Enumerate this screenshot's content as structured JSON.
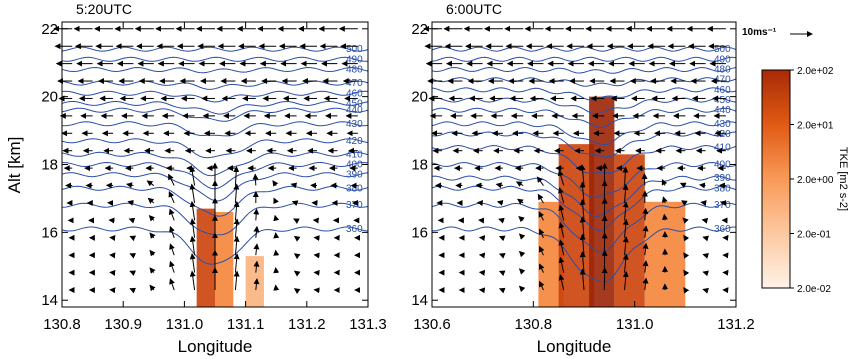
{
  "chart_data": [
    {
      "type": "contour",
      "title": "5:20UTC",
      "xlabel": "Longitude",
      "ylabel": "Alt [km]",
      "xlim": [
        130.8,
        131.3
      ],
      "ylim": [
        13.8,
        22.2
      ],
      "xticks": [
        "130.8",
        "130.9",
        "131.0",
        "131.1",
        "131.2",
        "131.3"
      ],
      "yticks": [
        "14",
        "16",
        "18",
        "20",
        "22"
      ],
      "theta_contours": [
        {
          "label": "360",
          "alt": 16.1
        },
        {
          "label": "370",
          "alt": 16.8
        },
        {
          "label": "380",
          "alt": 17.3
        },
        {
          "label": "390",
          "alt": 17.7
        },
        {
          "label": "400",
          "alt": 18.0
        },
        {
          "label": "410",
          "alt": 18.3
        },
        {
          "label": "420",
          "alt": 18.7
        },
        {
          "label": "430",
          "alt": 19.2
        },
        {
          "label": "440",
          "alt": 19.6
        },
        {
          "label": "450",
          "alt": 19.8
        },
        {
          "label": "460",
          "alt": 20.1
        },
        {
          "label": "470",
          "alt": 20.4
        },
        {
          "label": "480",
          "alt": 20.8
        },
        {
          "label": "490",
          "alt": 21.1
        },
        {
          "label": "500",
          "alt": 21.4
        }
      ],
      "tke_cells": [
        {
          "lon_min": 131.02,
          "lon_max": 131.05,
          "alt_min": 13.8,
          "alt_max": 16.7,
          "log10_tke": 1.0
        },
        {
          "lon_min": 131.05,
          "lon_max": 131.08,
          "alt_min": 13.8,
          "alt_max": 16.6,
          "log10_tke": 0.0
        },
        {
          "lon_min": 131.1,
          "lon_max": 131.13,
          "alt_min": 13.8,
          "alt_max": 15.3,
          "log10_tke": -1.0
        }
      ]
    },
    {
      "type": "contour",
      "title": "6:00UTC",
      "xlabel": "Longitude",
      "ylabel": "",
      "xlim": [
        130.6,
        131.2
      ],
      "ylim": [
        13.8,
        22.2
      ],
      "xticks": [
        "130.6",
        "130.8",
        "131.0",
        "131.2"
      ],
      "yticks": [
        "14",
        "16",
        "18",
        "20",
        "22"
      ],
      "theta_contours": [
        {
          "label": "360",
          "alt": 16.1
        },
        {
          "label": "370",
          "alt": 16.8
        },
        {
          "label": "380",
          "alt": 17.3
        },
        {
          "label": "390",
          "alt": 17.6
        },
        {
          "label": "400",
          "alt": 18.0
        },
        {
          "label": "410",
          "alt": 18.5
        },
        {
          "label": "420",
          "alt": 18.9
        },
        {
          "label": "430",
          "alt": 19.2
        },
        {
          "label": "440",
          "alt": 19.6
        },
        {
          "label": "450",
          "alt": 19.9
        },
        {
          "label": "460",
          "alt": 20.2
        },
        {
          "label": "470",
          "alt": 20.5
        },
        {
          "label": "480",
          "alt": 20.8
        },
        {
          "label": "490",
          "alt": 21.1
        },
        {
          "label": "500",
          "alt": 21.4
        }
      ],
      "tke_cells": [
        {
          "lon_min": 130.81,
          "lon_max": 130.86,
          "alt_min": 13.8,
          "alt_max": 16.9,
          "log10_tke": 0.0
        },
        {
          "lon_min": 130.85,
          "lon_max": 130.92,
          "alt_min": 13.8,
          "alt_max": 18.6,
          "log10_tke": 1.0
        },
        {
          "lon_min": 130.91,
          "lon_max": 130.96,
          "alt_min": 13.8,
          "alt_max": 20.0,
          "log10_tke": 2.0
        },
        {
          "lon_min": 130.96,
          "lon_max": 131.02,
          "alt_min": 13.8,
          "alt_max": 18.3,
          "log10_tke": 1.0
        },
        {
          "lon_min": 131.02,
          "lon_max": 131.1,
          "alt_min": 13.8,
          "alt_max": 16.9,
          "log10_tke": 0.0
        }
      ]
    }
  ],
  "reference_vector": {
    "label": "10ms⁻¹"
  },
  "colorbar": {
    "title": "TKE [m2 s-2]",
    "labels": [
      "2.0e+02",
      "2.0e+01",
      "2.0e+00",
      "2.0e-01",
      "2.0e-02"
    ],
    "colors": [
      "#fff2e8",
      "#fde0c8",
      "#fcc9a1",
      "#fbb27c",
      "#f99a58",
      "#f5843a",
      "#ec6c1f",
      "#de5512",
      "#cb420b",
      "#b53207",
      "#9c2505"
    ]
  }
}
